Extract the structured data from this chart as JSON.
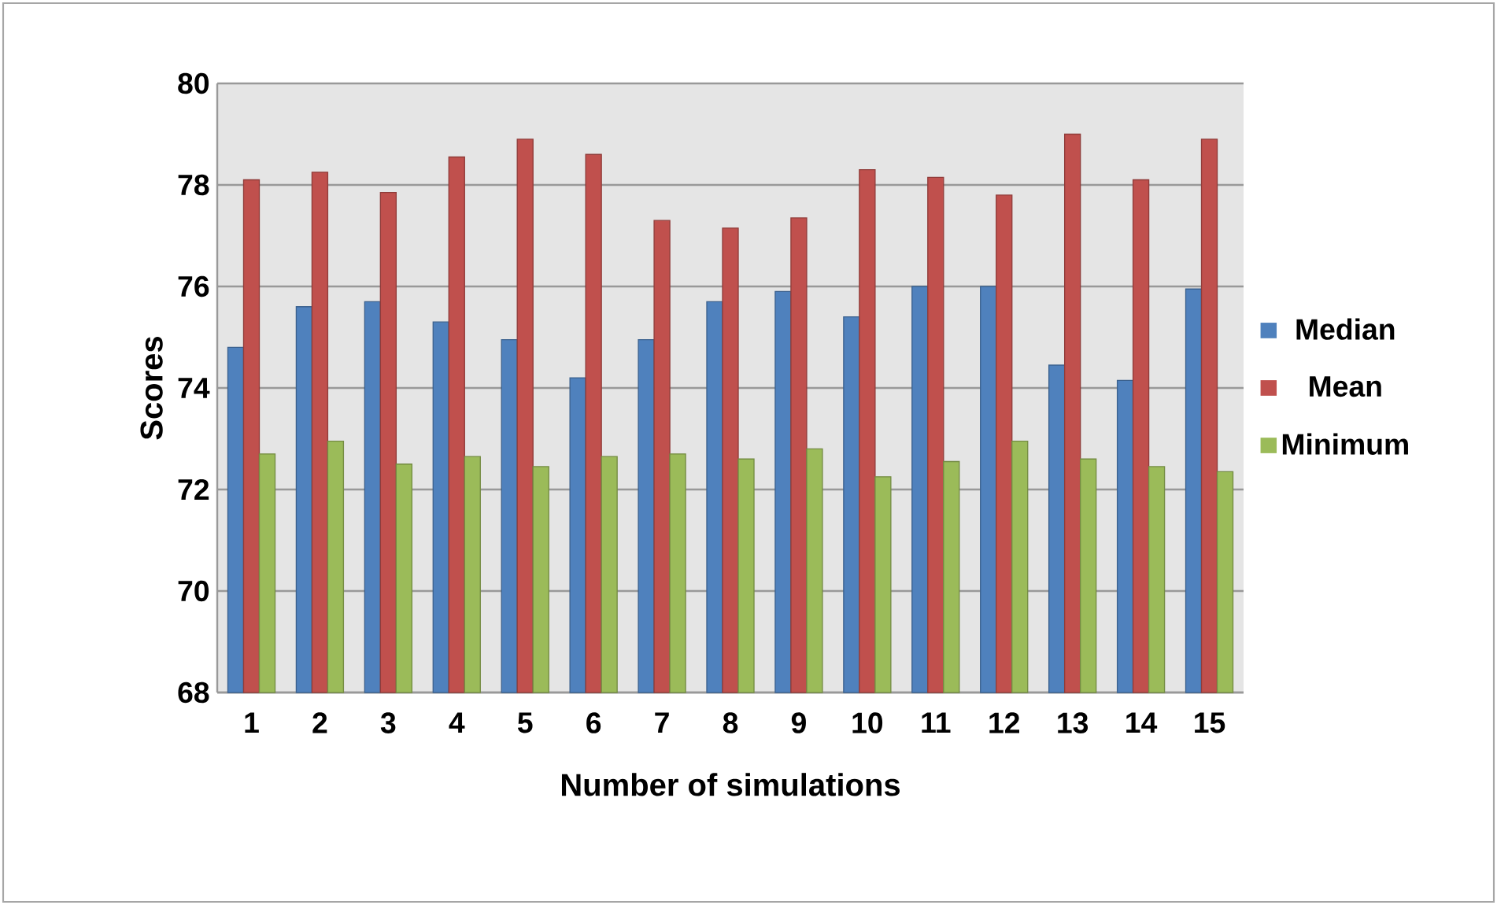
{
  "chart_data": {
    "type": "bar",
    "xlabel": "Number of simulations",
    "ylabel": "Scores",
    "categories": [
      "1",
      "2",
      "3",
      "4",
      "5",
      "6",
      "7",
      "8",
      "9",
      "10",
      "11",
      "12",
      "13",
      "14",
      "15"
    ],
    "series": [
      {
        "name": "Median",
        "color": "#4f81bd",
        "values": [
          74.8,
          75.6,
          75.7,
          75.3,
          74.95,
          74.2,
          74.95,
          75.7,
          75.9,
          75.4,
          76.0,
          76.0,
          74.45,
          74.15,
          75.95
        ]
      },
      {
        "name": "Mean",
        "color": "#c0504d",
        "values": [
          78.1,
          78.25,
          77.85,
          78.55,
          78.9,
          78.6,
          77.3,
          77.15,
          77.35,
          78.3,
          78.15,
          77.8,
          79.0,
          78.1,
          78.9
        ]
      },
      {
        "name": "Minimum",
        "color": "#9bbb59",
        "values": [
          72.7,
          72.95,
          72.5,
          72.65,
          72.45,
          72.65,
          72.7,
          72.6,
          72.8,
          72.25,
          72.55,
          72.95,
          72.6,
          72.45,
          72.35
        ]
      }
    ],
    "ylim": [
      68,
      80
    ],
    "yticks": [
      68,
      70,
      72,
      74,
      76,
      78,
      80
    ],
    "grid": "y",
    "legend": "right"
  }
}
